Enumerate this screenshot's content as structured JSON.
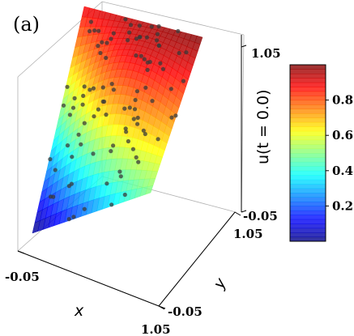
{
  "panel_label": "(a)",
  "colorbar": {
    "ticks": [
      "0.2",
      "0.4",
      "0.6",
      "0.8"
    ],
    "tick_values": [
      0.2,
      0.4,
      0.6,
      0.8
    ],
    "range": [
      0.0,
      1.0
    ],
    "colormap": "jet"
  },
  "chart_data": {
    "type": "surface",
    "xlabel": "x",
    "ylabel": "y",
    "zlabel": "u(t = 0.0)",
    "xlim": [
      -0.05,
      1.05
    ],
    "ylim": [
      -0.05,
      1.05
    ],
    "zlim": [
      -0.05,
      1.05
    ],
    "x_ticks": [
      "-0.05",
      "1.05"
    ],
    "y_ticks": [
      "1.05",
      "-0.05"
    ],
    "z_ticks": [
      "1.05",
      "-0.05"
    ],
    "surface": {
      "description_units": "u(x,y) over unit square",
      "corners": [
        {
          "x": 0.0,
          "y": 0.0,
          "u": 0.0
        },
        {
          "x": 1.0,
          "y": 0.0,
          "u": 0.5
        },
        {
          "x": 0.0,
          "y": 1.0,
          "u": 0.9
        },
        {
          "x": 1.0,
          "y": 1.0,
          "u": 1.0
        }
      ]
    },
    "scatter_points_count": 100,
    "colorbar_range": [
      0.0,
      1.0
    ]
  }
}
